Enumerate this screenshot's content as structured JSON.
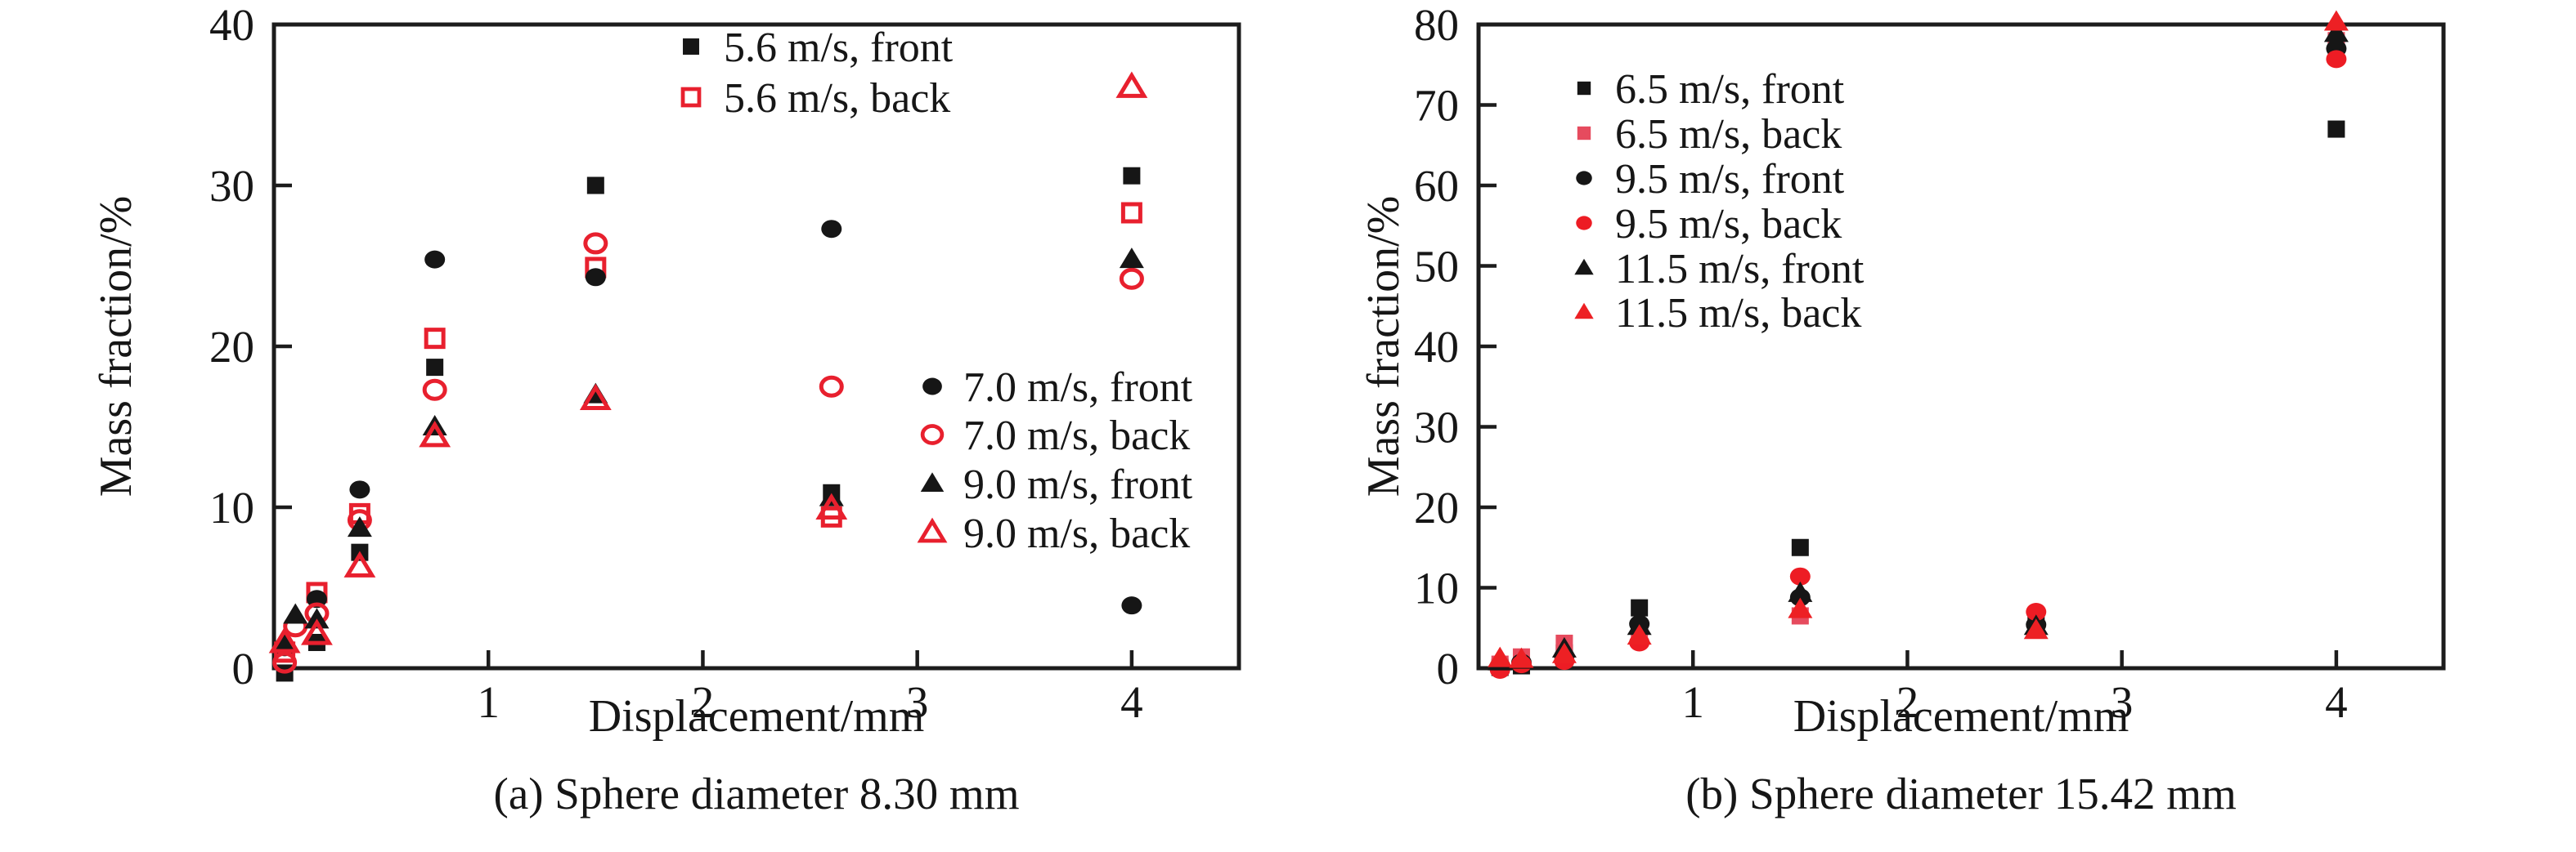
{
  "chart_data": [
    {
      "id": "a",
      "type": "scatter",
      "caption": "(a) Sphere diameter 8.30 mm",
      "xlabel": "Displacement/mm",
      "ylabel": "Mass fraction/%",
      "xlim": [
        0,
        4.5
      ],
      "ylim": [
        0,
        40
      ],
      "xticks": [
        1,
        2,
        3,
        4
      ],
      "yticks": [
        0,
        10,
        20,
        30,
        40
      ],
      "grid": false,
      "legend_groups": [
        [
          0,
          1
        ],
        [
          2,
          3,
          4,
          5
        ]
      ],
      "series": [
        {
          "name": "5.6 m/s, front",
          "marker": "square",
          "style": "filled",
          "color": "#161616",
          "points": [
            [
              0.05,
              -0.3
            ],
            [
              0.2,
              1.6
            ],
            [
              0.4,
              7.2
            ],
            [
              0.75,
              18.7
            ],
            [
              1.5,
              30.0
            ],
            [
              2.6,
              10.9
            ],
            [
              4.0,
              30.6
            ]
          ]
        },
        {
          "name": "5.6 m/s, back",
          "marker": "square",
          "style": "open",
          "color": "#e8202e",
          "points": [
            [
              0.05,
              1.0
            ],
            [
              0.2,
              4.7
            ],
            [
              0.4,
              9.6
            ],
            [
              0.75,
              20.5
            ],
            [
              1.5,
              24.9
            ],
            [
              2.6,
              9.4
            ],
            [
              4.0,
              28.3
            ]
          ]
        },
        {
          "name": "7.0 m/s, front",
          "marker": "circle",
          "style": "filled",
          "color": "#161616",
          "points": [
            [
              0.05,
              1.3
            ],
            [
              0.2,
              4.3
            ],
            [
              0.4,
              11.1
            ],
            [
              0.75,
              25.4
            ],
            [
              1.5,
              24.3
            ],
            [
              2.6,
              27.3
            ],
            [
              4.0,
              3.9
            ]
          ]
        },
        {
          "name": "7.0 m/s, back",
          "marker": "circle",
          "style": "open",
          "color": "#e8202e",
          "points": [
            [
              0.05,
              0.35
            ],
            [
              0.1,
              2.6
            ],
            [
              0.2,
              3.4
            ],
            [
              0.4,
              9.2
            ],
            [
              0.75,
              17.3
            ],
            [
              1.5,
              26.4
            ],
            [
              2.6,
              17.5
            ],
            [
              4.0,
              24.2
            ]
          ]
        },
        {
          "name": "9.0 m/s, front",
          "marker": "triangle",
          "style": "filled",
          "color": "#161616",
          "points": [
            [
              0.05,
              1.5
            ],
            [
              0.1,
              3.3
            ],
            [
              0.2,
              3.0
            ],
            [
              0.4,
              8.7
            ],
            [
              0.75,
              15.0
            ],
            [
              1.5,
              17.0
            ],
            [
              2.6,
              10.6
            ],
            [
              4.0,
              25.4
            ]
          ]
        },
        {
          "name": "9.0 m/s, back",
          "marker": "triangle",
          "style": "open",
          "color": "#e8202e",
          "points": [
            [
              0.05,
              1.6
            ],
            [
              0.2,
              2.1
            ],
            [
              0.4,
              6.3
            ],
            [
              0.75,
              14.4
            ],
            [
              1.5,
              16.7
            ],
            [
              2.6,
              9.9
            ],
            [
              4.0,
              36.1
            ]
          ]
        }
      ]
    },
    {
      "id": "b",
      "type": "scatter",
      "caption": "(b) Sphere diameter 15.42 mm",
      "xlabel": "Displacement/mm",
      "ylabel": "Mass fraction/%",
      "xlim": [
        0,
        4.5
      ],
      "ylim": [
        0,
        80
      ],
      "xticks": [
        1,
        2,
        3,
        4
      ],
      "yticks": [
        0,
        10,
        20,
        30,
        40,
        50,
        60,
        70,
        80
      ],
      "grid": false,
      "legend_groups": [
        [
          0,
          1,
          2,
          3,
          4,
          5
        ]
      ],
      "series": [
        {
          "name": "6.5 m/s, front",
          "marker": "square",
          "style": "filled",
          "color": "#161616",
          "points": [
            [
              0.1,
              0.1
            ],
            [
              0.2,
              0.3
            ],
            [
              0.4,
              1.9
            ],
            [
              0.75,
              7.5
            ],
            [
              1.5,
              15.0
            ],
            [
              2.6,
              5.6
            ],
            [
              4.0,
              67.0
            ]
          ]
        },
        {
          "name": "6.5 m/s, back",
          "marker": "square",
          "style": "filled",
          "color": "#e64b5e",
          "points": [
            [
              0.1,
              0.5
            ],
            [
              0.2,
              1.4
            ],
            [
              0.4,
              3.1
            ],
            [
              0.75,
              4.2
            ],
            [
              1.5,
              6.5
            ],
            [
              2.6,
              5.0
            ],
            [
              4.0,
              78.0
            ]
          ]
        },
        {
          "name": "9.5 m/s, front",
          "marker": "circle",
          "style": "filled",
          "color": "#161616",
          "points": [
            [
              0.1,
              0.3
            ],
            [
              0.2,
              0.7
            ],
            [
              0.4,
              1.5
            ],
            [
              0.75,
              5.5
            ],
            [
              1.5,
              8.8
            ],
            [
              2.6,
              5.4
            ],
            [
              4.0,
              77.0
            ]
          ]
        },
        {
          "name": "9.5 m/s, back",
          "marker": "circle",
          "style": "filled",
          "color": "#ed1c24",
          "points": [
            [
              0.1,
              -0.2
            ],
            [
              0.2,
              0.5
            ],
            [
              0.4,
              0.9
            ],
            [
              0.75,
              3.2
            ],
            [
              1.5,
              11.4
            ],
            [
              2.6,
              7.0
            ],
            [
              4.0,
              75.7
            ]
          ]
        },
        {
          "name": "11.5 m/s, front",
          "marker": "triangle",
          "style": "filled",
          "color": "#161616",
          "points": [
            [
              0.1,
              0.8
            ],
            [
              0.2,
              1.0
            ],
            [
              0.4,
              2.4
            ],
            [
              0.75,
              5.2
            ],
            [
              1.5,
              9.3
            ],
            [
              2.6,
              5.2
            ],
            [
              4.0,
              78.9
            ]
          ]
        },
        {
          "name": "11.5 m/s, back",
          "marker": "triangle",
          "style": "filled",
          "color": "#ed2024",
          "points": [
            [
              0.1,
              1.2
            ],
            [
              0.2,
              1.1
            ],
            [
              0.4,
              1.7
            ],
            [
              0.75,
              4.0
            ],
            [
              1.5,
              7.3
            ],
            [
              2.6,
              4.7
            ],
            [
              4.0,
              80.3
            ]
          ]
        }
      ]
    }
  ]
}
